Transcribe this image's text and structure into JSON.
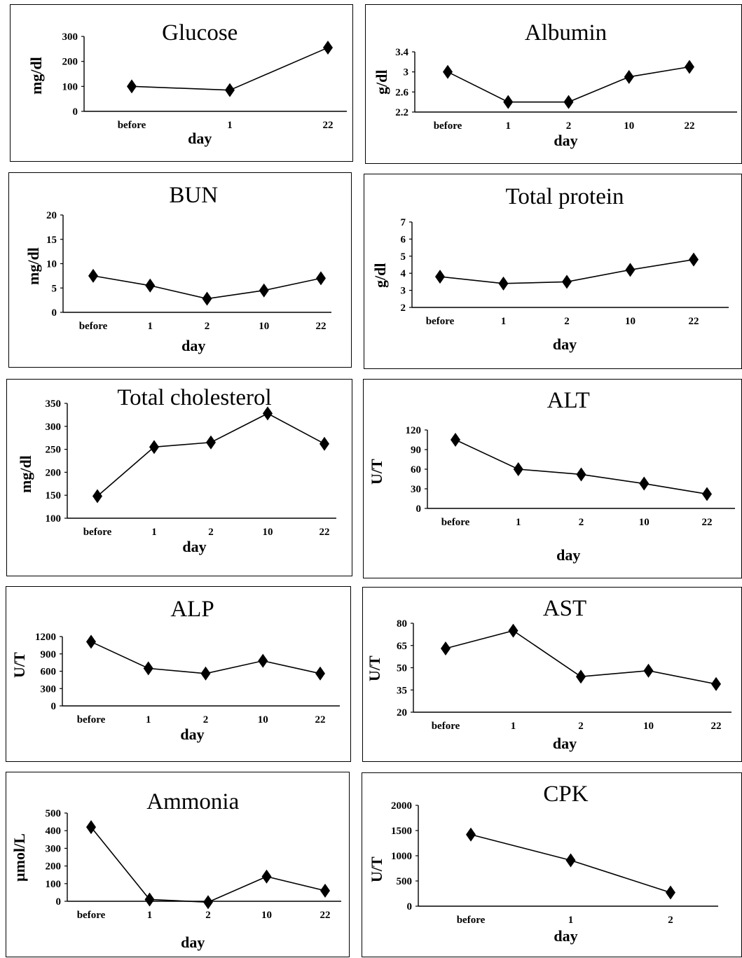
{
  "chart_data": [
    {
      "type": "line",
      "title": "Glucose",
      "xlabel": "day",
      "ylabel": "mg/dl",
      "categories": [
        "before",
        "1",
        "22"
      ],
      "values": [
        100,
        85,
        255
      ],
      "ylim": [
        0,
        300
      ],
      "yticks": [
        "0",
        "100",
        "200",
        "300"
      ],
      "ytick_values": [
        0,
        100,
        200,
        300
      ]
    },
    {
      "type": "line",
      "title": "Albumin",
      "xlabel": "day",
      "ylabel": "g/dl",
      "categories": [
        "before",
        "1",
        "2",
        "10",
        "22"
      ],
      "values": [
        3.0,
        2.4,
        2.4,
        2.9,
        3.1
      ],
      "ylim": [
        2.2,
        3.4
      ],
      "yticks": [
        "2.2",
        "2.6",
        "3",
        "3.4"
      ],
      "ytick_values": [
        2.2,
        2.6,
        3.0,
        3.4
      ]
    },
    {
      "type": "line",
      "title": "BUN",
      "xlabel": "day",
      "ylabel": "mg/dl",
      "categories": [
        "before",
        "1",
        "2",
        "10",
        "22"
      ],
      "values": [
        7.5,
        5.5,
        2.8,
        4.5,
        7
      ],
      "ylim": [
        0,
        20
      ],
      "yticks": [
        "0",
        "5",
        "10",
        "15",
        "20"
      ],
      "ytick_values": [
        0,
        5,
        10,
        15,
        20
      ]
    },
    {
      "type": "line",
      "title": "Total protein",
      "xlabel": "day",
      "ylabel": "g/dl",
      "categories": [
        "before",
        "1",
        "2",
        "10",
        "22"
      ],
      "values": [
        3.8,
        3.4,
        3.5,
        4.2,
        4.8
      ],
      "ylim": [
        2,
        7
      ],
      "yticks": [
        "2",
        "3",
        "4",
        "5",
        "6",
        "7"
      ],
      "ytick_values": [
        2,
        3,
        4,
        5,
        6,
        7
      ]
    },
    {
      "type": "line",
      "title": "Total cholesterol",
      "xlabel": "day",
      "ylabel": "mg/dl",
      "categories": [
        "before",
        "1",
        "2",
        "10",
        "22"
      ],
      "values": [
        148,
        255,
        265,
        328,
        262
      ],
      "ylim": [
        100,
        350
      ],
      "yticks": [
        "100",
        "150",
        "200",
        "250",
        "300",
        "350"
      ],
      "ytick_values": [
        100,
        150,
        200,
        250,
        300,
        350
      ]
    },
    {
      "type": "line",
      "title": "ALT",
      "xlabel": "day",
      "ylabel": "U/T",
      "categories": [
        "before",
        "1",
        "2",
        "10",
        "22"
      ],
      "values": [
        105,
        60,
        52,
        38,
        22
      ],
      "ylim": [
        0,
        120
      ],
      "yticks": [
        "0",
        "30",
        "60",
        "90",
        "120"
      ],
      "ytick_values": [
        0,
        30,
        60,
        90,
        120
      ]
    },
    {
      "type": "line",
      "title": "ALP",
      "xlabel": "day",
      "ylabel": "U/T",
      "categories": [
        "before",
        "1",
        "2",
        "10",
        "22"
      ],
      "values": [
        1110,
        650,
        560,
        780,
        560
      ],
      "ylim": [
        0,
        1200
      ],
      "yticks": [
        "0",
        "300",
        "600",
        "900",
        "1200"
      ],
      "ytick_values": [
        0,
        300,
        600,
        900,
        1200
      ]
    },
    {
      "type": "line",
      "title": "AST",
      "xlabel": "day",
      "ylabel": "U/T",
      "categories": [
        "before",
        "1",
        "2",
        "10",
        "22"
      ],
      "values": [
        63,
        75,
        44,
        48,
        39
      ],
      "ylim": [
        20,
        80
      ],
      "yticks": [
        "20",
        "35",
        "50",
        "65",
        "80"
      ],
      "ytick_values": [
        20,
        35,
        50,
        65,
        80
      ]
    },
    {
      "type": "line",
      "title": "Ammonia",
      "xlabel": "day",
      "ylabel": "µmol/L",
      "categories": [
        "before",
        "1",
        "2",
        "10",
        "22"
      ],
      "values": [
        420,
        10,
        -5,
        140,
        60
      ],
      "ylim": [
        0,
        500
      ],
      "yticks": [
        "0",
        "100",
        "200",
        "300",
        "400",
        "500"
      ],
      "ytick_values": [
        0,
        100,
        200,
        300,
        400,
        500
      ]
    },
    {
      "type": "line",
      "title": "CPK",
      "xlabel": "day",
      "ylabel": "U/T",
      "categories": [
        "before",
        "1",
        "2"
      ],
      "values": [
        1420,
        910,
        270
      ],
      "ylim": [
        0,
        2000
      ],
      "yticks": [
        "0",
        "500",
        "1000",
        "1500",
        "2000"
      ],
      "ytick_values": [
        0,
        500,
        1000,
        1500,
        2000
      ]
    }
  ]
}
